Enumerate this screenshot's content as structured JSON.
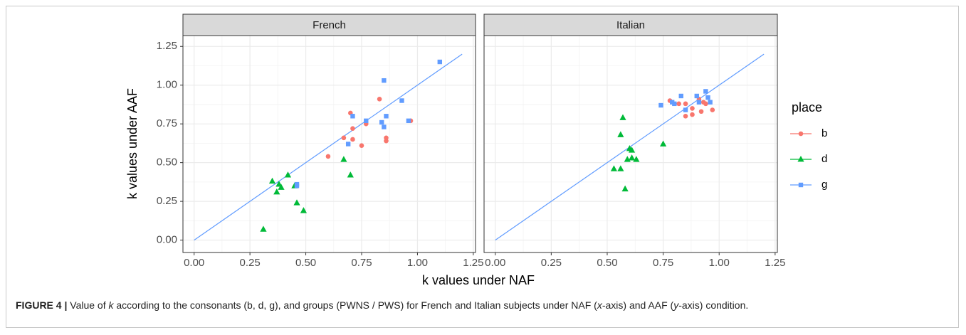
{
  "chart_data": {
    "type": "scatter",
    "xlabel": "k values under NAF",
    "ylabel": "k values under AAF",
    "legend_title": "place",
    "xlim": [
      -0.05,
      1.26
    ],
    "ylim": [
      -0.08,
      1.32
    ],
    "xticks": [
      {
        "value": 0,
        "label": "0.00"
      },
      {
        "value": 0.25,
        "label": "0.25"
      },
      {
        "value": 0.5,
        "label": "0.50"
      },
      {
        "value": 0.75,
        "label": "0.75"
      },
      {
        "value": 1,
        "label": "1.00"
      },
      {
        "value": 1.25,
        "label": "1.25"
      }
    ],
    "yticks": [
      {
        "value": 0,
        "label": "0.00"
      },
      {
        "value": 0.25,
        "label": "0.25"
      },
      {
        "value": 0.5,
        "label": "0.50"
      },
      {
        "value": 0.75,
        "label": "0.75"
      },
      {
        "value": 1,
        "label": "1.00"
      },
      {
        "value": 1.25,
        "label": "1.25"
      }
    ],
    "grid": true,
    "facets": [
      {
        "title": "French",
        "reference_line": {
          "x": [
            0,
            1.2
          ],
          "y": [
            0,
            1.2
          ],
          "color": "#619cff"
        },
        "series": [
          {
            "name": "b",
            "color": "#f8766d",
            "shape": "circle",
            "x": [
              0.6,
              0.67,
              0.7,
              0.71,
              0.71,
              0.75,
              0.77,
              0.83,
              0.86,
              0.86,
              0.97
            ],
            "values": [
              0.54,
              0.66,
              0.82,
              0.72,
              0.65,
              0.61,
              0.75,
              0.91,
              0.66,
              0.64,
              0.77
            ]
          },
          {
            "name": "d",
            "color": "#00ba38",
            "shape": "triangle",
            "x": [
              0.31,
              0.35,
              0.37,
              0.38,
              0.39,
              0.42,
              0.45,
              0.46,
              0.49,
              0.67,
              0.7
            ],
            "values": [
              0.07,
              0.38,
              0.31,
              0.36,
              0.34,
              0.42,
              0.35,
              0.24,
              0.19,
              0.52,
              0.42
            ]
          },
          {
            "name": "g",
            "color": "#619cff",
            "shape": "square",
            "x": [
              0.46,
              0.46,
              0.69,
              0.71,
              0.77,
              0.84,
              0.85,
              0.85,
              0.86,
              0.93,
              0.96,
              1.1
            ],
            "values": [
              0.36,
              0.35,
              0.62,
              0.8,
              0.77,
              0.76,
              1.03,
              0.73,
              0.8,
              0.9,
              0.77,
              1.15
            ]
          }
        ]
      },
      {
        "title": "Italian",
        "reference_line": {
          "x": [
            0,
            1.2
          ],
          "y": [
            0,
            1.2
          ],
          "color": "#619cff"
        },
        "series": [
          {
            "name": "b",
            "color": "#f8766d",
            "shape": "circle",
            "x": [
              0.78,
              0.82,
              0.85,
              0.85,
              0.88,
              0.88,
              0.91,
              0.92,
              0.93,
              0.94,
              0.97
            ],
            "values": [
              0.9,
              0.88,
              0.8,
              0.88,
              0.81,
              0.85,
              0.91,
              0.83,
              0.89,
              0.88,
              0.84
            ]
          },
          {
            "name": "d",
            "color": "#00ba38",
            "shape": "triangle",
            "x": [
              0.53,
              0.56,
              0.56,
              0.57,
              0.58,
              0.59,
              0.6,
              0.61,
              0.61,
              0.63,
              0.75
            ],
            "values": [
              0.46,
              0.68,
              0.46,
              0.79,
              0.33,
              0.52,
              0.59,
              0.53,
              0.58,
              0.52,
              0.62
            ]
          },
          {
            "name": "g",
            "color": "#619cff",
            "shape": "square",
            "x": [
              0.74,
              0.79,
              0.8,
              0.83,
              0.85,
              0.9,
              0.91,
              0.94,
              0.95,
              0.96
            ],
            "values": [
              0.87,
              0.89,
              0.88,
              0.93,
              0.84,
              0.93,
              0.89,
              0.96,
              0.92,
              0.89
            ]
          }
        ]
      }
    ]
  },
  "caption": {
    "label": "FIGURE 4 |",
    "parts": [
      "Value of ",
      "k",
      " according to the consonants (b, d, g), and groups (PWNS / PWS) for French and Italian subjects under NAF (",
      "x",
      "-axis) and AAF (",
      "y",
      "-axis) condition."
    ]
  }
}
